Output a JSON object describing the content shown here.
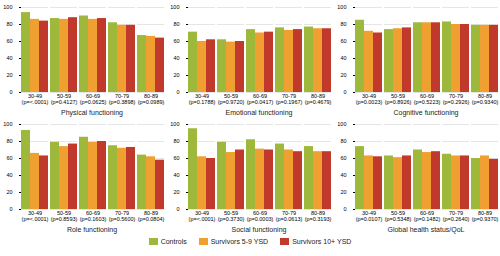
{
  "chart_data": [
    {
      "type": "bar",
      "xlabel": "Physical functioning",
      "categories": [
        "30-49\n(p=<.0001)",
        "50-59\n(p=0.4127)",
        "60-69\n(p=0.0625)",
        "70-79\n(p=0.3898)",
        "80-89\n(p=0.0989)"
      ],
      "series": [
        {
          "name": "Controls",
          "color": "#9db83a",
          "values": [
            94,
            87,
            90,
            82,
            67
          ]
        },
        {
          "name": "Survivors 5-9 YSD",
          "color": "#f0a030",
          "values": [
            86,
            86,
            86,
            79,
            66
          ]
        },
        {
          "name": "Survivors 10+ YSD",
          "color": "#c0392b",
          "values": [
            84,
            88,
            87,
            79,
            64
          ]
        }
      ],
      "ylim": [
        0,
        100
      ],
      "yticks": [
        0,
        20,
        40,
        60,
        80,
        100
      ],
      "grid": true,
      "legend": "bottom"
    },
    {
      "type": "bar",
      "xlabel": "Emotional functioning",
      "categories": [
        "30-49\n(p=0.1788)",
        "50-59\n(p=0.9720)",
        "60-69\n(p=0.0417)",
        "70-79\n(p=0.1967)",
        "80-89\n(p=0.4679)"
      ],
      "series": [
        {
          "name": "Controls",
          "color": "#9db83a",
          "values": [
            71,
            62,
            74,
            76,
            77
          ]
        },
        {
          "name": "Survivors 5-9 YSD",
          "color": "#f0a030",
          "values": [
            60,
            59,
            70,
            73,
            75
          ]
        },
        {
          "name": "Survivors 10+ YSD",
          "color": "#c0392b",
          "values": [
            62,
            60,
            71,
            74,
            75
          ]
        }
      ],
      "ylim": [
        0,
        100
      ],
      "yticks": [
        0,
        20,
        40,
        60,
        80,
        100
      ],
      "grid": true,
      "legend": "bottom"
    },
    {
      "type": "bar",
      "xlabel": "Cognitive functioning",
      "categories": [
        "30-49\n(p=0.0023)",
        "50-59\n(p=0.8926)",
        "60-69\n(p=0.5223)",
        "70-79\n(p=0.2926)",
        "80-89\n(p=0.9340)"
      ],
      "series": [
        {
          "name": "Controls",
          "color": "#9db83a",
          "values": [
            85,
            74,
            82,
            83,
            79
          ]
        },
        {
          "name": "Survivors 5-9 YSD",
          "color": "#f0a030",
          "values": [
            72,
            75,
            82,
            80,
            79
          ]
        },
        {
          "name": "Survivors 10+ YSD",
          "color": "#c0392b",
          "values": [
            70,
            76,
            82,
            80,
            79
          ]
        }
      ],
      "ylim": [
        0,
        100
      ],
      "yticks": [
        0,
        20,
        40,
        60,
        80,
        100
      ],
      "grid": true,
      "legend": "bottom"
    },
    {
      "type": "bar",
      "xlabel": "Role functioning",
      "categories": [
        "30-49\n(p=<.0001)",
        "50-59\n(p=0.8593)",
        "60-69\n(p=0.1603)",
        "70-79\n(p=0.5600)",
        "80-89\n(p=0.0804)"
      ],
      "series": [
        {
          "name": "Controls",
          "color": "#9db83a",
          "values": [
            93,
            79,
            85,
            75,
            64
          ]
        },
        {
          "name": "Survivors 5-9 YSD",
          "color": "#f0a030",
          "values": [
            66,
            74,
            79,
            72,
            62
          ]
        },
        {
          "name": "Survivors 10+ YSD",
          "color": "#c0392b",
          "values": [
            63,
            77,
            80,
            73,
            58
          ]
        }
      ],
      "ylim": [
        0,
        100
      ],
      "yticks": [
        0,
        20,
        40,
        60,
        80,
        100
      ],
      "grid": true,
      "legend": "bottom"
    },
    {
      "type": "bar",
      "xlabel": "Social functioning",
      "categories": [
        "30-49\n(p=<.0001)",
        "50-59\n(p=0.3730)",
        "60-69\n(p=0.0003)",
        "70-79\n(p=0.0613)",
        "80-89\n(p=0.3193)"
      ],
      "series": [
        {
          "name": "Controls",
          "color": "#9db83a",
          "values": [
            95,
            79,
            82,
            77,
            74
          ]
        },
        {
          "name": "Survivors 5-9 YSD",
          "color": "#f0a030",
          "values": [
            62,
            67,
            71,
            70,
            68
          ]
        },
        {
          "name": "Survivors 10+ YSD",
          "color": "#c0392b",
          "values": [
            60,
            70,
            70,
            68,
            68
          ]
        }
      ],
      "ylim": [
        0,
        100
      ],
      "yticks": [
        0,
        20,
        40,
        60,
        80,
        100
      ],
      "grid": true,
      "legend": "bottom"
    },
    {
      "type": "bar",
      "xlabel": "Global health status/QoL",
      "categories": [
        "30-49\n(p=0.0107)",
        "50-59\n(p=0.5348)",
        "60-69\n(p=0.1482)",
        "70-79\n(p=0.2640)",
        "80-89\n(p=0.9370)"
      ],
      "series": [
        {
          "name": "Controls",
          "color": "#9db83a",
          "values": [
            74,
            63,
            70,
            65,
            60
          ]
        },
        {
          "name": "Survivors 5-9 YSD",
          "color": "#f0a030",
          "values": [
            63,
            61,
            67,
            63,
            63
          ]
        },
        {
          "name": "Survivors 10+ YSD",
          "color": "#c0392b",
          "values": [
            62,
            63,
            68,
            63,
            59
          ]
        }
      ],
      "ylim": [
        0,
        100
      ],
      "yticks": [
        0,
        20,
        40,
        60,
        80,
        100
      ],
      "grid": true,
      "legend": "bottom"
    }
  ]
}
